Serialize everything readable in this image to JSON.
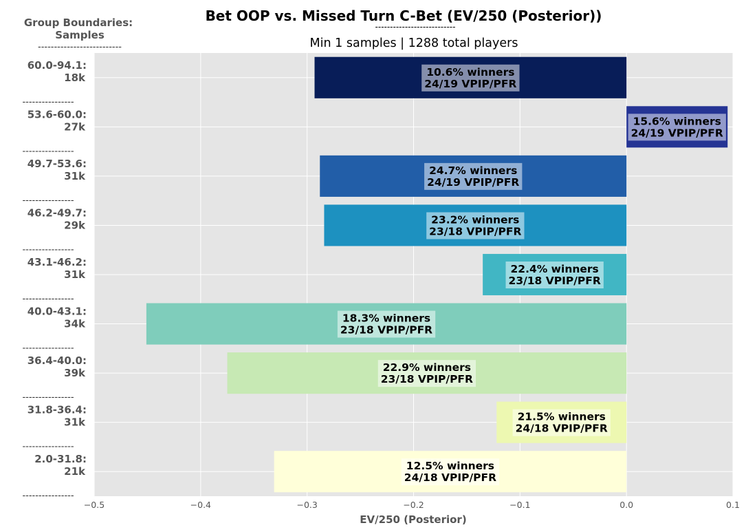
{
  "chart_data": {
    "type": "bar",
    "orientation": "horizontal",
    "title": "Bet OOP vs. Missed Turn C-Bet (EV/250 (Posterior))",
    "title_underline": "---------------------------",
    "subtitle": "Min 1 samples | 1288 total players",
    "xlabel": "EV/250 (Posterior)",
    "ylabel_title": [
      "Group Boundaries:",
      "Samples"
    ],
    "ylabel_underline": "--------------------------",
    "category_separator": "----------------",
    "xlim": [
      -0.5,
      0.1
    ],
    "xticks": [
      -0.5,
      -0.4,
      -0.3,
      -0.2,
      -0.1,
      0.0,
      0.1
    ],
    "xtick_labels": [
      "−0.5",
      "−0.4",
      "−0.3",
      "−0.2",
      "−0.1",
      "0.0",
      "0.1"
    ],
    "grid": true,
    "bars": [
      {
        "range": "60.0-94.1:",
        "samples": "18k",
        "value": -0.293,
        "winners": "10.6% winners",
        "vpip_pfr": "24/19 VPIP/PFR",
        "color": "#081d58"
      },
      {
        "range": "53.6-60.0:",
        "samples": "27k",
        "value": 0.095,
        "winners": "15.6% winners",
        "vpip_pfr": "24/19 VPIP/PFR",
        "color": "#253494"
      },
      {
        "range": "49.7-53.6:",
        "samples": "31k",
        "value": -0.288,
        "winners": "24.7% winners",
        "vpip_pfr": "24/19 VPIP/PFR",
        "color": "#225ea8"
      },
      {
        "range": "46.2-49.7:",
        "samples": "29k",
        "value": -0.284,
        "winners": "23.2% winners",
        "vpip_pfr": "23/18 VPIP/PFR",
        "color": "#1d91c0"
      },
      {
        "range": "43.1-46.2:",
        "samples": "31k",
        "value": -0.135,
        "winners": "22.4% winners",
        "vpip_pfr": "23/18 VPIP/PFR",
        "color": "#41b6c4"
      },
      {
        "range": "40.0-43.1:",
        "samples": "34k",
        "value": -0.451,
        "winners": "18.3% winners",
        "vpip_pfr": "23/18 VPIP/PFR",
        "color": "#7fcdbb"
      },
      {
        "range": "36.4-40.0:",
        "samples": "39k",
        "value": -0.375,
        "winners": "22.9% winners",
        "vpip_pfr": "23/18 VPIP/PFR",
        "color": "#c7e9b4"
      },
      {
        "range": "31.8-36.4:",
        "samples": "31k",
        "value": -0.122,
        "winners": "21.5% winners",
        "vpip_pfr": "24/18 VPIP/PFR",
        "color": "#edf8b1"
      },
      {
        "range": "2.0-31.8:",
        "samples": "21k",
        "value": -0.331,
        "winners": "12.5% winners",
        "vpip_pfr": "24/18 VPIP/PFR",
        "color": "#ffffd9"
      }
    ]
  }
}
